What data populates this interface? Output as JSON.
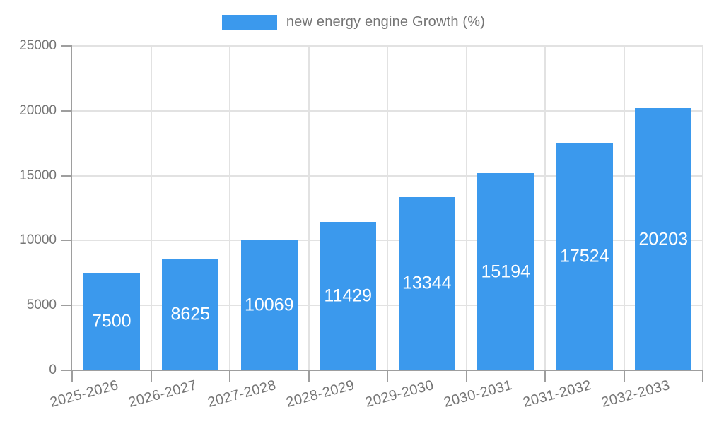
{
  "chart_data": {
    "type": "bar",
    "title": "",
    "legend_label": "new energy engine Growth (%)",
    "legend_position": "top",
    "categories": [
      "2025-2026",
      "2026-2027",
      "2027-2028",
      "2028-2029",
      "2029-2030",
      "2030-2031",
      "2031-2032",
      "2032-2033"
    ],
    "values": [
      7500,
      8625,
      10069,
      11429,
      13344,
      15194,
      17524,
      20203
    ],
    "xlabel": "",
    "ylabel": "",
    "ylim": [
      0,
      25000
    ],
    "yticks": [
      0,
      5000,
      10000,
      15000,
      20000,
      25000
    ],
    "grid": true,
    "value_labels": "inside-center",
    "x_label_rotation_deg": -15,
    "colors": {
      "bar": "#3B99ED",
      "axis": "#9E9E9E",
      "grid": "#E2E2E2",
      "tick_text": "#757575",
      "value_text": "#FFFFFF",
      "background": "#FFFFFF"
    }
  }
}
